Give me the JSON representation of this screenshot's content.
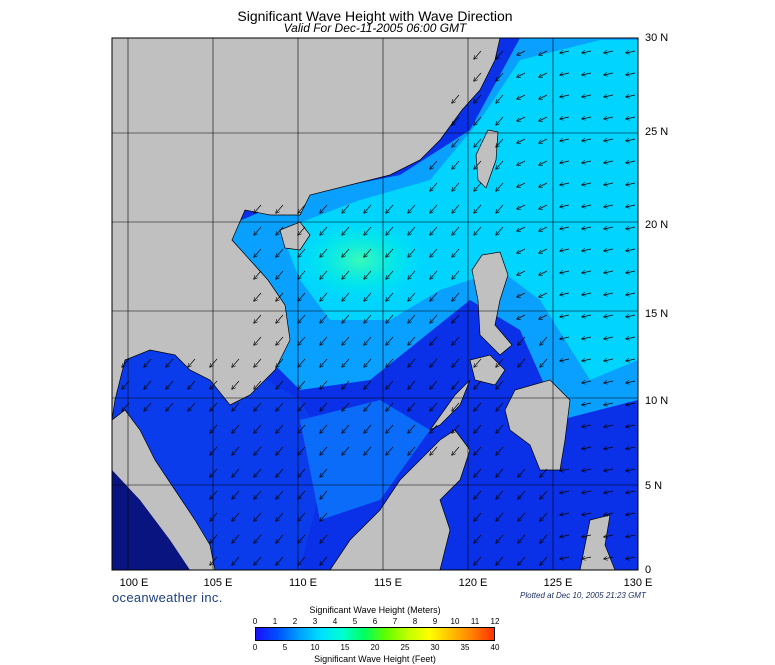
{
  "header": {
    "title": "Significant Wave Height with Wave Direction",
    "subtitle": "Valid For Dec-11-2005 06:00 GMT"
  },
  "axes": {
    "lon_labels": [
      "100 E",
      "105 E",
      "110 E",
      "115 E",
      "120 E",
      "125 E",
      "130 E"
    ],
    "lat_labels": [
      "30 N",
      "25 N",
      "20 N",
      "15 N",
      "10 N",
      "5 N",
      "0"
    ]
  },
  "footer": {
    "brand": "oceanweather inc.",
    "plotted": "Plotted at Dec 10, 2005 21:23 GMT"
  },
  "colorbar": {
    "meters_title": "Significant Wave Height (Meters)",
    "meters_ticks": [
      "0",
      "1",
      "2",
      "3",
      "4",
      "5",
      "6",
      "7",
      "8",
      "9",
      "10",
      "11",
      "12"
    ],
    "feet_ticks": [
      "0",
      "5",
      "10",
      "15",
      "20",
      "25",
      "30",
      "35",
      "40"
    ],
    "feet_title": "Significant Wave Height (Feet)",
    "gradient": [
      "#1a10ff",
      "#0050ff",
      "#00a0ff",
      "#00e0ff",
      "#00ffd0",
      "#00ff60",
      "#60ff00",
      "#c0ff00",
      "#ffff00",
      "#ffc000",
      "#ff8000",
      "#ff3000"
    ]
  },
  "colors": {
    "land": "#c0c0c0",
    "water_low": "#0a28e0",
    "water_mid": "#0a8cff",
    "water_high": "#00dcff",
    "water_peak": "#30ffb0"
  }
}
